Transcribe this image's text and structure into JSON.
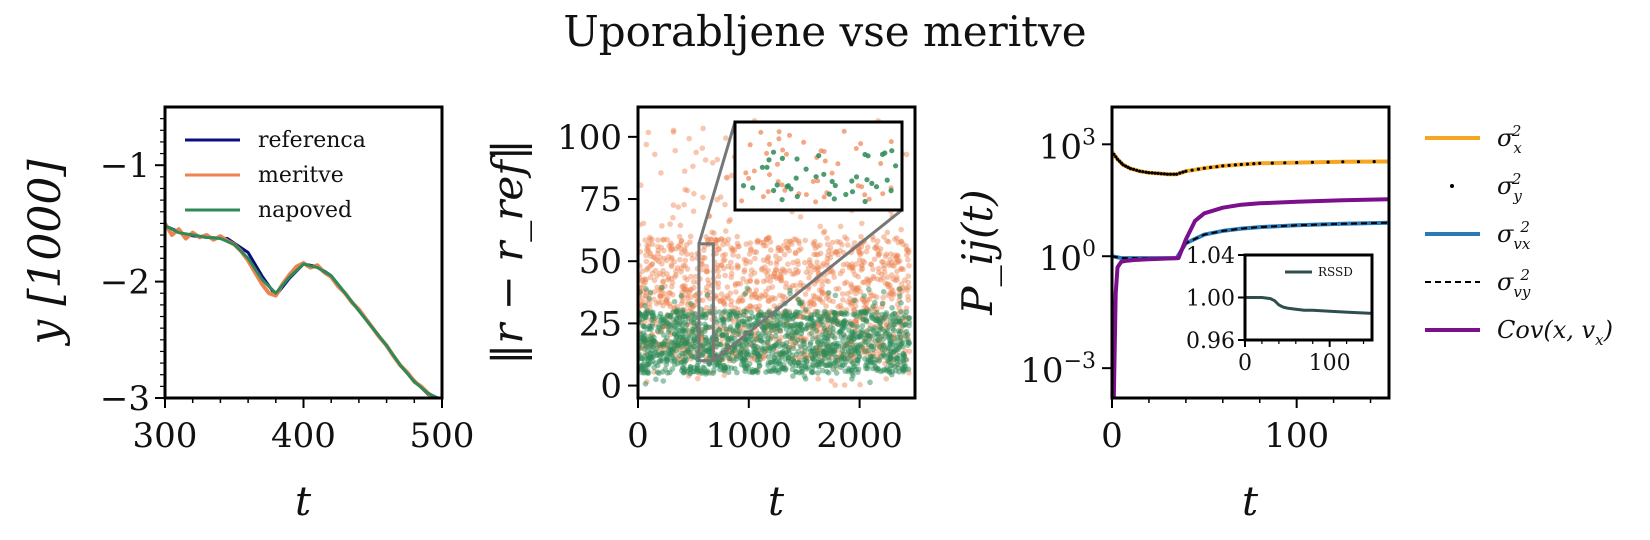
{
  "title": "Uporabljene vse meritve",
  "colors": {
    "referenca": "#0d0d80",
    "meritve": "#ee8250",
    "napoved": "#2e8b57",
    "sigma_x2": "#f5a623",
    "sigma_y2": "#000000",
    "sigma_vx2": "#2a7ab8",
    "sigma_vy2": "#000000",
    "cov": "#7b0f8c",
    "rssd": "#2f4f4f",
    "zoom_box": "#777777"
  },
  "chart_data": [
    {
      "type": "line",
      "xlabel": "t",
      "ylabel": "y [1000]",
      "xlim": [
        300,
        500
      ],
      "ylim": [
        -3.0,
        -0.5
      ],
      "xticks": [
        "300",
        "400",
        "500"
      ],
      "yticks": [
        "−1",
        "−2",
        "−3"
      ],
      "ytick_values": [
        -1,
        -2,
        -3
      ],
      "xtick_values": [
        300,
        400,
        500
      ],
      "legend": {
        "placement": "upper-left",
        "entries": [
          "referenca",
          "meritve",
          "napoved"
        ]
      },
      "series": [
        {
          "name": "referenca",
          "x": [
            300,
            315,
            330,
            345,
            360,
            370,
            380,
            390,
            400,
            410,
            420,
            430,
            440,
            450,
            460,
            470,
            480,
            490,
            497
          ],
          "y": [
            -1.52,
            -1.6,
            -1.62,
            -1.63,
            -1.75,
            -1.95,
            -2.12,
            -1.97,
            -1.85,
            -1.87,
            -1.95,
            -2.1,
            -2.25,
            -2.4,
            -2.55,
            -2.72,
            -2.85,
            -2.97,
            -3.0
          ]
        },
        {
          "name": "meritve",
          "x": [
            300,
            305,
            310,
            315,
            320,
            325,
            330,
            335,
            340,
            345,
            350,
            355,
            360,
            365,
            370,
            375,
            380,
            385,
            390,
            395,
            400,
            405,
            410,
            415,
            420,
            425,
            430,
            435,
            440,
            445,
            450,
            455,
            460,
            465,
            470,
            475,
            480,
            485,
            490,
            495
          ],
          "y": [
            -1.5,
            -1.6,
            -1.55,
            -1.63,
            -1.58,
            -1.62,
            -1.6,
            -1.64,
            -1.61,
            -1.65,
            -1.68,
            -1.74,
            -1.82,
            -1.92,
            -2.02,
            -2.1,
            -2.12,
            -2.02,
            -1.94,
            -1.87,
            -1.84,
            -1.88,
            -1.86,
            -1.92,
            -1.96,
            -2.04,
            -2.1,
            -2.18,
            -2.24,
            -2.32,
            -2.4,
            -2.48,
            -2.55,
            -2.64,
            -2.72,
            -2.78,
            -2.86,
            -2.9,
            -2.96,
            -3.0
          ]
        },
        {
          "name": "napoved",
          "x": [
            300,
            310,
            320,
            330,
            340,
            350,
            360,
            370,
            380,
            390,
            400,
            410,
            420,
            430,
            440,
            450,
            460,
            470,
            480,
            490,
            497
          ],
          "y": [
            -1.52,
            -1.58,
            -1.6,
            -1.62,
            -1.63,
            -1.68,
            -1.8,
            -1.98,
            -2.1,
            -1.96,
            -1.85,
            -1.88,
            -1.95,
            -2.1,
            -2.25,
            -2.4,
            -2.55,
            -2.72,
            -2.86,
            -2.96,
            -3.0
          ]
        }
      ]
    },
    {
      "type": "scatter",
      "xlabel": "t",
      "ylabel": "‖r − r_ref‖",
      "xlim": [
        0,
        2500
      ],
      "ylim": [
        -5,
        112
      ],
      "xticks": [
        "0",
        "1000",
        "2000"
      ],
      "xtick_values": [
        0,
        1000,
        2000
      ],
      "yticks": [
        "0",
        "25",
        "50",
        "75",
        "100"
      ],
      "ytick_values": [
        0,
        25,
        50,
        75,
        100
      ],
      "series": [
        {
          "name": "meritve",
          "x_range": [
            0,
            2450
          ],
          "y_range": [
            0,
            108
          ],
          "typical_range": [
            10,
            60
          ]
        },
        {
          "name": "napoved",
          "x_range": [
            0,
            2450
          ],
          "y_range": [
            0,
            40
          ],
          "typical_range": [
            5,
            30
          ]
        }
      ],
      "zoom": {
        "x_range": [
          550,
          680
        ],
        "y_range": [
          10,
          57
        ]
      }
    },
    {
      "type": "line",
      "xlabel": "t",
      "ylabel": "P_ij(t)",
      "yscale": "log",
      "xlim": [
        0,
        150
      ],
      "ylim_log10": [
        -3.8,
        4.0
      ],
      "xticks": [
        "0",
        "100"
      ],
      "xtick_values": [
        0,
        100
      ],
      "yticks": [
        "10^3",
        "10^0",
        "10^−3"
      ],
      "ytick_log10": [
        3,
        0,
        -3
      ],
      "legend": {
        "placement": "outside-right",
        "entries": [
          "σ_x²",
          "σ_y²",
          "σ_vx²",
          "σ_vy²",
          "Cov(x, v_x)"
        ]
      },
      "series": [
        {
          "name": "σ_x²",
          "x": [
            0,
            3,
            6,
            10,
            15,
            20,
            25,
            30,
            35,
            40,
            50,
            60,
            70,
            80,
            100,
            125,
            150
          ],
          "log10_y": [
            2.8,
            2.6,
            2.45,
            2.35,
            2.28,
            2.24,
            2.22,
            2.2,
            2.2,
            2.28,
            2.36,
            2.42,
            2.46,
            2.49,
            2.51,
            2.53,
            2.54
          ]
        },
        {
          "name": "σ_y²",
          "x": [
            0,
            3,
            6,
            10,
            15,
            20,
            25,
            30,
            35,
            40,
            50,
            60,
            70,
            80,
            100,
            125,
            150
          ],
          "log10_y": [
            2.8,
            2.6,
            2.45,
            2.35,
            2.28,
            2.24,
            2.22,
            2.2,
            2.2,
            2.28,
            2.36,
            2.42,
            2.46,
            2.49,
            2.51,
            2.53,
            2.54
          ]
        },
        {
          "name": "σ_vx²",
          "x": [
            0,
            5,
            10,
            20,
            30,
            35,
            40,
            50,
            60,
            70,
            80,
            100,
            125,
            150
          ],
          "log10_y": [
            0.0,
            -0.05,
            -0.05,
            -0.05,
            -0.05,
            -0.05,
            0.35,
            0.58,
            0.68,
            0.74,
            0.78,
            0.83,
            0.87,
            0.9
          ]
        },
        {
          "name": "σ_vy²",
          "x": [
            0,
            5,
            10,
            20,
            30,
            35,
            40,
            50,
            60,
            70,
            80,
            100,
            125,
            150
          ],
          "log10_y": [
            0.0,
            -0.05,
            -0.05,
            -0.05,
            -0.05,
            -0.05,
            0.35,
            0.58,
            0.68,
            0.74,
            0.78,
            0.83,
            0.87,
            0.9
          ]
        },
        {
          "name": "Cov(x, v_x)",
          "x": [
            1,
            2,
            3,
            5,
            8,
            12,
            20,
            30,
            36,
            40,
            45,
            50,
            60,
            70,
            80,
            100,
            125,
            150
          ],
          "log10_y": [
            -3.8,
            -1.0,
            -0.3,
            -0.15,
            -0.12,
            -0.1,
            -0.08,
            -0.06,
            -0.05,
            0.45,
            0.95,
            1.15,
            1.3,
            1.38,
            1.42,
            1.46,
            1.5,
            1.53
          ]
        }
      ],
      "inset": {
        "xlim": [
          0,
          150
        ],
        "ylim": [
          0.96,
          1.04
        ],
        "xticks": [
          "0",
          "100"
        ],
        "xtick_values": [
          0,
          100
        ],
        "yticks": [
          "1.04",
          "1.00",
          "0.96"
        ],
        "ytick_values": [
          1.04,
          1.0,
          0.96
        ],
        "legend": "RSSD",
        "series": {
          "name": "RSSD",
          "x": [
            0,
            10,
            20,
            30,
            35,
            40,
            45,
            50,
            60,
            70,
            80,
            100,
            125,
            150
          ],
          "y": [
            1.0,
            1.0,
            1.0,
            0.999,
            0.997,
            0.993,
            0.991,
            0.99,
            0.989,
            0.988,
            0.988,
            0.987,
            0.986,
            0.985
          ]
        }
      }
    }
  ]
}
